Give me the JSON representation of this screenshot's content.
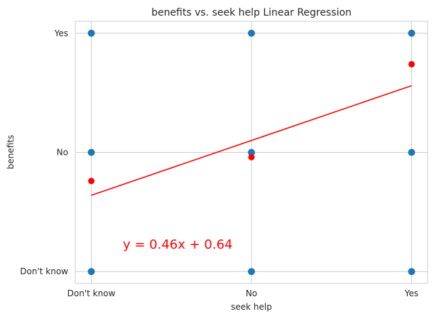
{
  "chart_data": {
    "type": "scatter",
    "title": "benefits vs. seek help Linear Regression",
    "xlabel": "seek help",
    "ylabel": "benefits",
    "x_ticks": [
      "Don't know",
      "No",
      "Yes"
    ],
    "y_ticks": [
      "Don't know",
      "No",
      "Yes"
    ],
    "xlim": [
      -0.1,
      2.1
    ],
    "ylim": [
      -0.1,
      2.1
    ],
    "grid": true,
    "series": [
      {
        "marker_color": "#1f77b4",
        "points": [
          {
            "x": 0,
            "y": 0
          },
          {
            "x": 0,
            "y": 1
          },
          {
            "x": 0,
            "y": 2
          },
          {
            "x": 1,
            "y": 0
          },
          {
            "x": 1,
            "y": 1
          },
          {
            "x": 1,
            "y": 2
          },
          {
            "x": 2,
            "y": 0
          },
          {
            "x": 2,
            "y": 1
          },
          {
            "x": 2,
            "y": 2
          }
        ]
      },
      {
        "marker_color": "#ff0000",
        "points": [
          {
            "x": 0,
            "y": 0.76
          },
          {
            "x": 1,
            "y": 0.96
          },
          {
            "x": 2,
            "y": 1.74
          }
        ]
      }
    ],
    "regression_line": {
      "slope": 0.46,
      "intercept": 0.64,
      "x_range": [
        0,
        2
      ],
      "color": "#ff0000"
    },
    "annotation": {
      "text": "y = 0.46x + 0.64",
      "x": 0.2,
      "y": 0.45,
      "color": "#ff0000"
    }
  }
}
